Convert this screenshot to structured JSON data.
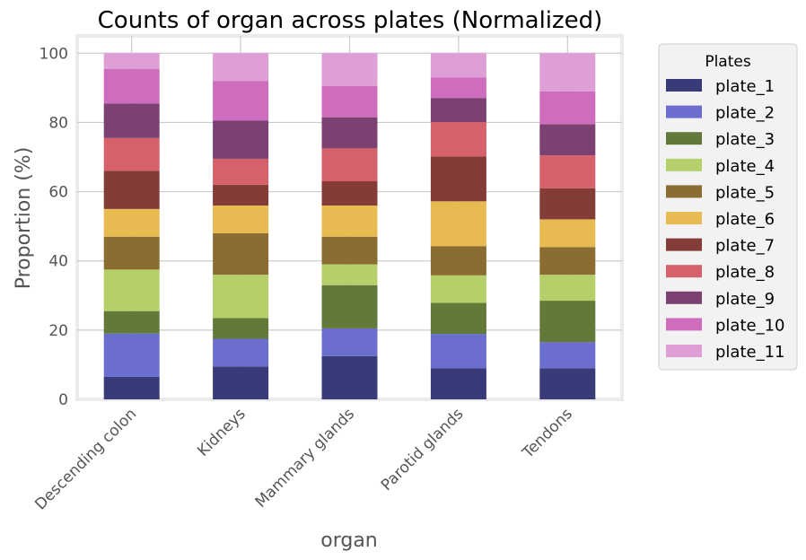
{
  "chart_data": {
    "type": "bar",
    "stacked": true,
    "title": "Counts of organ across plates (Normalized)",
    "xlabel": "organ",
    "ylabel": "Proportion (%)",
    "ylim": [
      0,
      105
    ],
    "yticks": [
      0,
      20,
      40,
      60,
      80,
      100
    ],
    "grid": true,
    "legend_title": "Plates",
    "legend_position": "outside-right",
    "categories": [
      "Descending colon",
      "Kidneys",
      "Mammary glands",
      "Parotid glands",
      "Tendons"
    ],
    "series": [
      {
        "name": "plate_1",
        "color": "#393b79",
        "values": [
          6.5,
          9.5,
          12.5,
          9.0,
          9.0
        ]
      },
      {
        "name": "plate_2",
        "color": "#6b6ecf",
        "values": [
          12.5,
          8.0,
          8.0,
          10.0,
          7.5
        ]
      },
      {
        "name": "plate_3",
        "color": "#637939",
        "values": [
          6.5,
          6.0,
          12.5,
          9.0,
          12.0
        ]
      },
      {
        "name": "plate_4",
        "color": "#b5cf6b",
        "values": [
          12.0,
          12.5,
          6.0,
          8.0,
          7.5
        ]
      },
      {
        "name": "plate_5",
        "color": "#8c6d31",
        "values": [
          9.5,
          12.0,
          8.0,
          8.5,
          8.0
        ]
      },
      {
        "name": "plate_6",
        "color": "#e7ba52",
        "values": [
          8.0,
          8.0,
          9.0,
          13.0,
          8.0
        ]
      },
      {
        "name": "plate_7",
        "color": "#843c39",
        "values": [
          11.0,
          6.0,
          7.0,
          13.0,
          9.0
        ]
      },
      {
        "name": "plate_8",
        "color": "#d6616b",
        "values": [
          9.5,
          7.5,
          9.5,
          10.0,
          9.5
        ]
      },
      {
        "name": "plate_9",
        "color": "#7b4173",
        "values": [
          10.0,
          11.0,
          9.0,
          7.0,
          9.0
        ]
      },
      {
        "name": "plate_10",
        "color": "#ce6dbd",
        "values": [
          10.0,
          11.5,
          9.0,
          6.0,
          9.5
        ]
      },
      {
        "name": "plate_11",
        "color": "#de9ed6",
        "values": [
          4.5,
          8.0,
          9.5,
          7.0,
          11.0
        ]
      }
    ]
  }
}
